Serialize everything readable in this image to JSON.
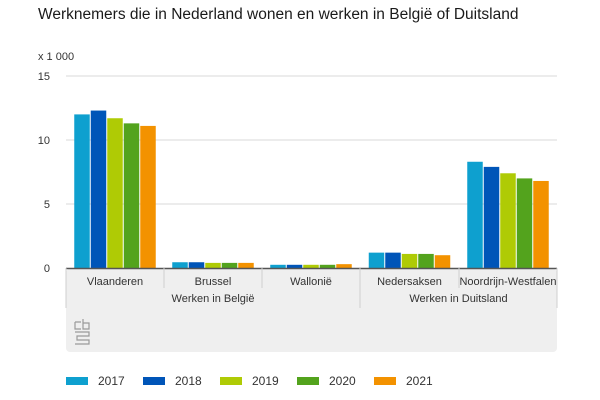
{
  "chart_data": {
    "type": "bar",
    "title": "Werknemers die in Nederland wonen en werken in België of Duitsland",
    "unit_label": "x 1 000",
    "xlabel": "",
    "ylabel": "",
    "ylim": [
      0,
      15
    ],
    "yticks": [
      0,
      5,
      10,
      15
    ],
    "grid": true,
    "legend_position": "bottom",
    "categories": [
      "Vlaanderen",
      "Brussel",
      "Wallonië",
      "Nedersaksen",
      "Noordrijn-Westfalen"
    ],
    "groups": [
      {
        "label": "Werken in België",
        "categories": [
          "Vlaanderen",
          "Brussel",
          "Wallonië"
        ]
      },
      {
        "label": "Werken in Duitsland",
        "categories": [
          "Nedersaksen",
          "Noordrijn-Westfalen"
        ]
      }
    ],
    "series": [
      {
        "name": "2017",
        "color": "#0ea0cf",
        "values": [
          12.0,
          0.45,
          0.25,
          1.2,
          8.3
        ]
      },
      {
        "name": "2018",
        "color": "#0055b8",
        "values": [
          12.3,
          0.45,
          0.25,
          1.2,
          7.9
        ]
      },
      {
        "name": "2019",
        "color": "#afcb05",
        "values": [
          11.7,
          0.4,
          0.25,
          1.1,
          7.4
        ]
      },
      {
        "name": "2020",
        "color": "#53a31d",
        "values": [
          11.3,
          0.4,
          0.25,
          1.1,
          7.0
        ]
      },
      {
        "name": "2021",
        "color": "#f39200",
        "values": [
          11.1,
          0.4,
          0.3,
          1.0,
          6.8
        ]
      }
    ]
  },
  "logo": "cbs-logo-icon"
}
